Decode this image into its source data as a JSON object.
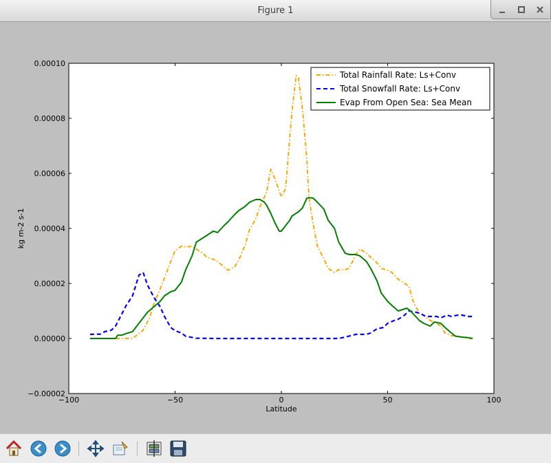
{
  "window": {
    "title": "Figure 1",
    "minimize_icon": "minimize-icon",
    "maximize_icon": "maximize-icon",
    "close_icon": "close-icon"
  },
  "toolbar": {
    "buttons": [
      {
        "name": "home",
        "icon": "home-icon"
      },
      {
        "name": "back",
        "icon": "back-arrow-icon"
      },
      {
        "name": "forward",
        "icon": "forward-arrow-icon"
      },
      {
        "name": "pan",
        "icon": "pan-move-icon"
      },
      {
        "name": "zoom",
        "icon": "zoom-rect-icon"
      },
      {
        "name": "configure-subplots",
        "icon": "subplots-icon"
      },
      {
        "name": "save",
        "icon": "save-floppy-icon"
      }
    ]
  },
  "chart_data": {
    "type": "line",
    "xlabel": "Latitude",
    "ylabel": "kg m-2 s-1",
    "xlim": [
      -100,
      100
    ],
    "ylim": [
      -2e-05,
      0.0001
    ],
    "xticks": [
      -100,
      -50,
      0,
      50,
      100
    ],
    "xtick_labels": [
      "−100",
      "−50",
      "0",
      "50",
      "100"
    ],
    "yticks": [
      -2e-05,
      0,
      2e-05,
      4e-05,
      6e-05,
      8e-05,
      0.0001
    ],
    "ytick_labels": [
      "−0.00002",
      "0.00000",
      "0.00002",
      "0.00004",
      "0.00006",
      "0.00008",
      "0.00010"
    ],
    "grid": false,
    "legend_position": "upper right",
    "series": [
      {
        "name": "Total Rainfall Rate: Ls+Conv",
        "color": "#ffa500",
        "style": "dashdot",
        "x": [
          -78,
          -70,
          -68,
          -65,
          -62,
          -60,
          -57,
          -55,
          -52,
          -50,
          -47,
          -45,
          -42,
          -40,
          -37,
          -35,
          -32,
          -30,
          -27,
          -25,
          -22,
          -20,
          -17,
          -15,
          -12,
          -10,
          -7,
          -5,
          -3,
          0,
          2,
          5,
          7,
          8,
          10,
          12,
          13,
          15,
          17,
          20,
          22,
          25,
          27,
          30,
          32,
          35,
          37,
          40,
          42,
          45,
          47,
          50,
          52,
          55,
          57,
          60,
          62,
          65,
          67,
          70,
          72,
          75,
          77,
          80,
          82,
          85,
          88,
          90
        ],
        "y": [
          0.0,
          0.0,
          1.2e-06,
          3e-06,
          7.5e-06,
          1.25e-05,
          1.8e-05,
          2.2e-05,
          2.8e-05,
          3.2e-05,
          3.35e-05,
          3.33e-05,
          3.35e-05,
          3.25e-05,
          3.1e-05,
          2.95e-05,
          2.88e-05,
          2.8e-05,
          2.6e-05,
          2.48e-05,
          2.6e-05,
          2.85e-05,
          3.4e-05,
          3.95e-05,
          4.35e-05,
          4.8e-05,
          5.3e-05,
          6.15e-05,
          5.8e-05,
          5.15e-05,
          5.45e-05,
          8.25e-05,
          9.55e-05,
          9.5e-05,
          8.3e-05,
          6.5e-05,
          5.1e-05,
          4.15e-05,
          3.35e-05,
          2.9e-05,
          2.55e-05,
          2.4e-05,
          2.5e-05,
          2.5e-05,
          2.55e-05,
          3.05e-05,
          3.25e-05,
          3.1e-05,
          2.95e-05,
          2.75e-05,
          2.55e-05,
          2.48e-05,
          2.4e-05,
          2.15e-05,
          2.05e-05,
          1.9e-05,
          1.35e-05,
          9e-06,
          8.5e-06,
          6.5e-06,
          6e-06,
          4.5e-06,
          2e-06,
          1e-06,
          1e-06,
          5e-07,
          0.0,
          0.0
        ]
      },
      {
        "name": "Total Snowfall Rate: Ls+Conv",
        "color": "#0000ff",
        "style": "dashed",
        "x": [
          -90,
          -85,
          -83,
          -80,
          -78,
          -75,
          -73,
          -70,
          -67,
          -65,
          -63,
          -60,
          -57,
          -55,
          -52,
          -50,
          -47,
          -45,
          -40,
          -30,
          -20,
          -10,
          0,
          10,
          20,
          27,
          30,
          35,
          37,
          40,
          42,
          45,
          48,
          50,
          53,
          55,
          58,
          60,
          62,
          65,
          68,
          70,
          73,
          75,
          78,
          80,
          83,
          85,
          88,
          90
        ],
        "y": [
          1.5e-06,
          1.6e-06,
          2.5e-06,
          3e-06,
          4.5e-06,
          9e-06,
          1.2e-05,
          1.55e-05,
          2.3e-05,
          2.4e-05,
          1.95e-05,
          1.5e-05,
          1.15e-05,
          8e-06,
          4e-06,
          2.8e-06,
          2e-06,
          8e-07,
          1e-07,
          0.0,
          0.0,
          0.0,
          0.0,
          0.0,
          0.0,
          0.0,
          5e-07,
          1.5e-06,
          1.5e-06,
          1.5e-06,
          2e-06,
          3.5e-06,
          4e-06,
          5.5e-06,
          6.5e-06,
          7e-06,
          8.5e-06,
          1e-05,
          9.8e-06,
          9.2e-06,
          8e-06,
          8e-06,
          8e-06,
          7.5e-06,
          8.5e-06,
          8e-06,
          8.5e-06,
          8.5e-06,
          8e-06,
          8e-06
        ]
      },
      {
        "name": "Evap From Open Sea: Sea Mean",
        "color": "#008000",
        "style": "solid",
        "x": [
          -90,
          -78,
          -77,
          -75,
          -73,
          -70,
          -68,
          -65,
          -63,
          -60,
          -57,
          -55,
          -52,
          -50,
          -47,
          -45,
          -42,
          -40,
          -37,
          -35,
          -32,
          -30,
          -27,
          -25,
          -22,
          -20,
          -17,
          -15,
          -12,
          -10,
          -8,
          -7,
          -5,
          -3,
          -1,
          0,
          2,
          4,
          5,
          7,
          8,
          10,
          12,
          13,
          15,
          17,
          20,
          22,
          25,
          27,
          30,
          32,
          35,
          37,
          40,
          42,
          45,
          47,
          50,
          52,
          55,
          57,
          59,
          60,
          62,
          65,
          67,
          70,
          72,
          75,
          77,
          80,
          82,
          85,
          88,
          90
        ],
        "y": [
          0.0,
          0.0,
          1.2e-06,
          1.2e-06,
          1.8e-06,
          2.5e-06,
          4.5e-06,
          7.5e-06,
          9.5e-06,
          1.15e-05,
          1.35e-05,
          1.55e-05,
          1.7e-05,
          1.75e-05,
          2.05e-05,
          2.5e-05,
          3e-05,
          3.5e-05,
          3.65e-05,
          3.75e-05,
          3.9e-05,
          3.85e-05,
          4.1e-05,
          4.25e-05,
          4.5e-05,
          4.65e-05,
          4.8e-05,
          4.95e-05,
          5.05e-05,
          5.05e-05,
          4.95e-05,
          4.85e-05,
          4.55e-05,
          4.2e-05,
          3.9e-05,
          3.9e-05,
          4.1e-05,
          4.3e-05,
          4.45e-05,
          4.55e-05,
          4.6e-05,
          4.75e-05,
          5.1e-05,
          5.12e-05,
          5.1e-05,
          4.95e-05,
          4.7e-05,
          4.3e-05,
          4e-05,
          3.5e-05,
          3.1e-05,
          3.05e-05,
          3.05e-05,
          3e-05,
          2.8e-05,
          2.55e-05,
          2.1e-05,
          1.65e-05,
          1.35e-05,
          1.2e-05,
          1e-05,
          1.05e-05,
          1.1e-05,
          1.05e-05,
          9e-06,
          6.5e-06,
          5.5e-06,
          4.5e-06,
          6e-06,
          5.5e-06,
          4e-06,
          2e-06,
          8e-07,
          5e-07,
          3e-07,
          0.0
        ]
      }
    ]
  }
}
